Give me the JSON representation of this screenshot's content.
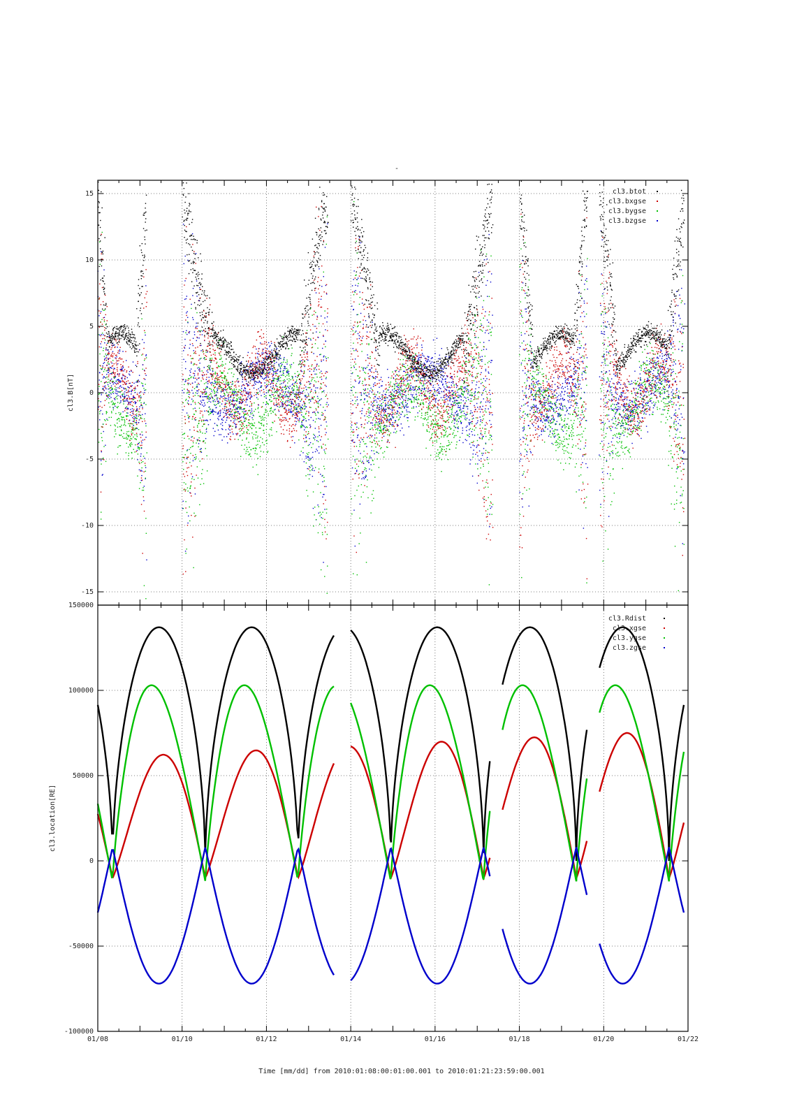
{
  "chart_data": [
    {
      "type": "scatter",
      "title": "-",
      "ylabel": "cl3.B[nT]",
      "xlabel": "",
      "ylim": [
        -16,
        16
      ],
      "yticks": [
        "-15",
        "-10",
        "-5",
        "0",
        "5",
        "10",
        "15"
      ],
      "legend_position": "top-right",
      "grid": true,
      "series": [
        {
          "name": "cl3.btot",
          "color": "#000000"
        },
        {
          "name": "cl3.bxgse",
          "color": "#cc0000"
        },
        {
          "name": "cl3.bygse",
          "color": "#00c000"
        },
        {
          "name": "cl3.bzgse",
          "color": "#0000cc"
        }
      ],
      "coverage_days": [
        [
          0.0,
          1.15
        ],
        [
          2.0,
          5.45
        ],
        [
          6.0,
          9.35
        ],
        [
          10.0,
          11.6
        ],
        [
          11.9,
          13.9
        ]
      ]
    },
    {
      "type": "line",
      "title": "",
      "ylabel": "cl3.location[RE]",
      "xlabel": "Time [mm/dd]  from 2010:01:08:00:01:00.001  to  2010:01:21:23:59:00.001",
      "xticks": [
        "01/08",
        "01/10",
        "01/12",
        "01/14",
        "01/16",
        "01/18",
        "01/20",
        "01/22"
      ],
      "yticks": [
        "-100000",
        "-50000",
        "0",
        "50000",
        "100000",
        "150000"
      ],
      "ylim": [
        -100000,
        150000
      ],
      "xlim_days": [
        0,
        14
      ],
      "legend_position": "top-right",
      "grid": true,
      "series": [
        {
          "name": "cl3.Rdist",
          "color": "#000000"
        },
        {
          "name": "cl3.xgse",
          "color": "#cc0000"
        },
        {
          "name": "cl3.ygse",
          "color": "#00c000"
        },
        {
          "name": "cl3.zgse",
          "color": "#0000cc"
        }
      ],
      "segments_days": [
        [
          0.0,
          5.6
        ],
        [
          6.0,
          9.3
        ],
        [
          9.6,
          11.6
        ],
        [
          11.9,
          13.9
        ]
      ],
      "apogees_days": [
        1.45,
        3.65,
        5.85,
        8.05,
        10.25,
        12.45
      ]
    }
  ]
}
